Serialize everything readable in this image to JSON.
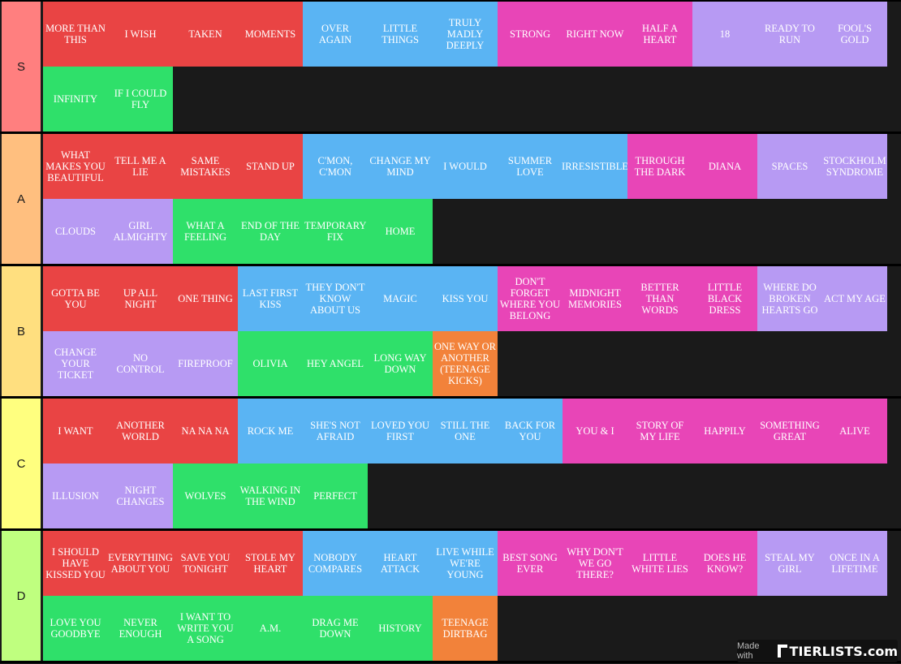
{
  "colors": {
    "red": "#e94444",
    "blue": "#5ab4f3",
    "pink": "#e845b7",
    "purple": "#b79af3",
    "green": "#2fe06a",
    "orange": "#f2823a"
  },
  "tiers": [
    {
      "label": "S",
      "label_color": "#ff7f7f",
      "items": [
        {
          "text": "MORE THAN THIS",
          "color": "red"
        },
        {
          "text": "I WISH",
          "color": "red"
        },
        {
          "text": "TAKEN",
          "color": "red"
        },
        {
          "text": "MOMENTS",
          "color": "red"
        },
        {
          "text": "OVER AGAIN",
          "color": "blue"
        },
        {
          "text": "LITTLE THINGS",
          "color": "blue"
        },
        {
          "text": "TRULY MADLY DEEPLY",
          "color": "blue"
        },
        {
          "text": "STRONG",
          "color": "pink"
        },
        {
          "text": "RIGHT NOW",
          "color": "pink"
        },
        {
          "text": "HALF A HEART",
          "color": "pink"
        },
        {
          "text": "18",
          "color": "purple"
        },
        {
          "text": "READY TO RUN",
          "color": "purple"
        },
        {
          "text": "FOOL'S GOLD",
          "color": "purple"
        },
        {
          "text": "INFINITY",
          "color": "green"
        },
        {
          "text": "IF I COULD FLY",
          "color": "green"
        }
      ]
    },
    {
      "label": "A",
      "label_color": "#ffbf7f",
      "items": [
        {
          "text": "WHAT MAKES YOU BEAUTIFUL",
          "color": "red"
        },
        {
          "text": "TELL ME A LIE",
          "color": "red"
        },
        {
          "text": "SAME MISTAKES",
          "color": "red"
        },
        {
          "text": "STAND UP",
          "color": "red"
        },
        {
          "text": "C'MON, C'MON",
          "color": "blue"
        },
        {
          "text": "CHANGE MY MIND",
          "color": "blue"
        },
        {
          "text": "I WOULD",
          "color": "blue"
        },
        {
          "text": "SUMMER LOVE",
          "color": "blue"
        },
        {
          "text": "IRRESISTIBLE",
          "color": "blue"
        },
        {
          "text": "THROUGH THE DARK",
          "color": "pink"
        },
        {
          "text": "DIANA",
          "color": "pink"
        },
        {
          "text": "SPACES",
          "color": "purple"
        },
        {
          "text": "STOCKHOLM SYNDROME",
          "color": "purple"
        },
        {
          "text": "CLOUDS",
          "color": "purple"
        },
        {
          "text": "GIRL ALMIGHTY",
          "color": "purple"
        },
        {
          "text": "WHAT A FEELING",
          "color": "green"
        },
        {
          "text": "END OF THE DAY",
          "color": "green"
        },
        {
          "text": "TEMPORARY FIX",
          "color": "green"
        },
        {
          "text": "HOME",
          "color": "green"
        }
      ]
    },
    {
      "label": "B",
      "label_color": "#ffdf7f",
      "items": [
        {
          "text": "GOTTA BE YOU",
          "color": "red"
        },
        {
          "text": "UP ALL NIGHT",
          "color": "red"
        },
        {
          "text": "ONE THING",
          "color": "red"
        },
        {
          "text": "LAST FIRST KISS",
          "color": "blue"
        },
        {
          "text": "THEY DON'T KNOW ABOUT US",
          "color": "blue"
        },
        {
          "text": "MAGIC",
          "color": "blue"
        },
        {
          "text": "KISS YOU",
          "color": "blue"
        },
        {
          "text": "DON'T FORGET WHERE YOU BELONG",
          "color": "pink"
        },
        {
          "text": "MIDNIGHT MEMORIES",
          "color": "pink"
        },
        {
          "text": "BETTER THAN WORDS",
          "color": "pink"
        },
        {
          "text": "LITTLE BLACK DRESS",
          "color": "pink"
        },
        {
          "text": "WHERE DO BROKEN HEARTS GO",
          "color": "purple"
        },
        {
          "text": "ACT MY AGE",
          "color": "purple"
        },
        {
          "text": "CHANGE YOUR TICKET",
          "color": "purple"
        },
        {
          "text": "NO CONTROL",
          "color": "purple"
        },
        {
          "text": "FIREPROOF",
          "color": "purple"
        },
        {
          "text": "OLIVIA",
          "color": "green"
        },
        {
          "text": "HEY ANGEL",
          "color": "green"
        },
        {
          "text": "LONG WAY DOWN",
          "color": "green"
        },
        {
          "text": "ONE WAY OR ANOTHER (TEENAGE KICKS)",
          "color": "orange"
        }
      ]
    },
    {
      "label": "C",
      "label_color": "#ffff7f",
      "items": [
        {
          "text": "I WANT",
          "color": "red"
        },
        {
          "text": "ANOTHER WORLD",
          "color": "red"
        },
        {
          "text": "NA NA NA",
          "color": "red"
        },
        {
          "text": "ROCK ME",
          "color": "blue"
        },
        {
          "text": "SHE'S NOT AFRAID",
          "color": "blue"
        },
        {
          "text": "LOVED YOU FIRST",
          "color": "blue"
        },
        {
          "text": "STILL THE ONE",
          "color": "blue"
        },
        {
          "text": "BACK FOR YOU",
          "color": "blue"
        },
        {
          "text": "YOU & I",
          "color": "pink"
        },
        {
          "text": "STORY OF MY LIFE",
          "color": "pink"
        },
        {
          "text": "HAPPILY",
          "color": "pink"
        },
        {
          "text": "SOMETHING GREAT",
          "color": "pink"
        },
        {
          "text": "ALIVE",
          "color": "pink"
        },
        {
          "text": "ILLUSION",
          "color": "purple"
        },
        {
          "text": "NIGHT CHANGES",
          "color": "purple"
        },
        {
          "text": "WOLVES",
          "color": "green"
        },
        {
          "text": "WALKING IN THE WIND",
          "color": "green"
        },
        {
          "text": "PERFECT",
          "color": "green"
        }
      ]
    },
    {
      "label": "D",
      "label_color": "#bfff7f",
      "items": [
        {
          "text": "I SHOULD HAVE KISSED YOU",
          "color": "red"
        },
        {
          "text": "EVERYTHING ABOUT YOU",
          "color": "red"
        },
        {
          "text": "SAVE YOU TONIGHT",
          "color": "red"
        },
        {
          "text": "STOLE MY HEART",
          "color": "red"
        },
        {
          "text": "NOBODY COMPARES",
          "color": "blue"
        },
        {
          "text": "HEART ATTACK",
          "color": "blue"
        },
        {
          "text": "LIVE WHILE WE'RE YOUNG",
          "color": "blue"
        },
        {
          "text": "BEST SONG EVER",
          "color": "pink"
        },
        {
          "text": "WHY DON'T WE GO THERE?",
          "color": "pink"
        },
        {
          "text": "LITTLE WHITE LIES",
          "color": "pink"
        },
        {
          "text": "DOES HE KNOW?",
          "color": "pink"
        },
        {
          "text": "STEAL MY GIRL",
          "color": "purple"
        },
        {
          "text": "ONCE IN A LIFETIME",
          "color": "purple"
        },
        {
          "text": "LOVE YOU GOODBYE",
          "color": "green"
        },
        {
          "text": "NEVER ENOUGH",
          "color": "green"
        },
        {
          "text": "I WANT TO WRITE YOU A SONG",
          "color": "green"
        },
        {
          "text": "A.M.",
          "color": "green"
        },
        {
          "text": "DRAG ME DOWN",
          "color": "green"
        },
        {
          "text": "HISTORY",
          "color": "green"
        },
        {
          "text": "TEENAGE DIRTBAG",
          "color": "orange"
        }
      ]
    }
  ],
  "watermark": {
    "made_with": "Made with",
    "brand": "TIERLISTS.com",
    "icon": "tierlists-logo-icon"
  }
}
